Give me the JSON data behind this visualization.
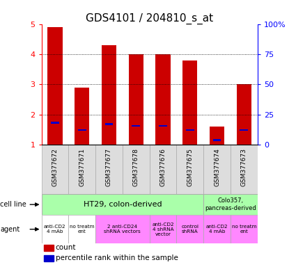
{
  "title": "GDS4101 / 204810_s_at",
  "samples": [
    "GSM377672",
    "GSM377671",
    "GSM377677",
    "GSM377678",
    "GSM377676",
    "GSM377675",
    "GSM377674",
    "GSM377673"
  ],
  "bar_heights": [
    4.9,
    2.9,
    4.3,
    4.0,
    4.0,
    3.8,
    1.6,
    3.0
  ],
  "percentile_heights": [
    1.7,
    1.46,
    1.65,
    1.6,
    1.6,
    1.46,
    1.12,
    1.46
  ],
  "bar_color": "#cc0000",
  "percentile_color": "#0000cc",
  "ylim": [
    1,
    5
  ],
  "yticks": [
    1,
    2,
    3,
    4,
    5
  ],
  "y2ticks": [
    0,
    25,
    50,
    75,
    100
  ],
  "y2ticklabels": [
    "0",
    "25",
    "50",
    "75",
    "100%"
  ],
  "bg_color": "#ffffff",
  "title_fontsize": 11,
  "bar_width": 0.55,
  "sample_label_color": "#888888",
  "sample_box_color": "#dddddd",
  "cell_line_color": "#aaffaa",
  "agent_white_color": "#ffffff",
  "agent_pink_color": "#ff88ff",
  "legend_count_color": "#cc0000",
  "legend_percentile_color": "#0000cc",
  "agent_groups": [
    {
      "label": "anti-CD2\n4 mAb",
      "start": 0,
      "end": 1,
      "color": "#ffffff"
    },
    {
      "label": "no treatm\nent",
      "start": 1,
      "end": 2,
      "color": "#ffffff"
    },
    {
      "label": "2 anti-CD24\nshRNA vectors",
      "start": 2,
      "end": 4,
      "color": "#ff88ff"
    },
    {
      "label": "anti-CD2\n4 shRNA\nvector",
      "start": 4,
      "end": 5,
      "color": "#ff88ff"
    },
    {
      "label": "control\nshRNA",
      "start": 5,
      "end": 6,
      "color": "#ff88ff"
    },
    {
      "label": "anti-CD2\n4 mAb",
      "start": 6,
      "end": 7,
      "color": "#ff88ff"
    },
    {
      "label": "no treatm\nent",
      "start": 7,
      "end": 8,
      "color": "#ff88ff"
    }
  ]
}
